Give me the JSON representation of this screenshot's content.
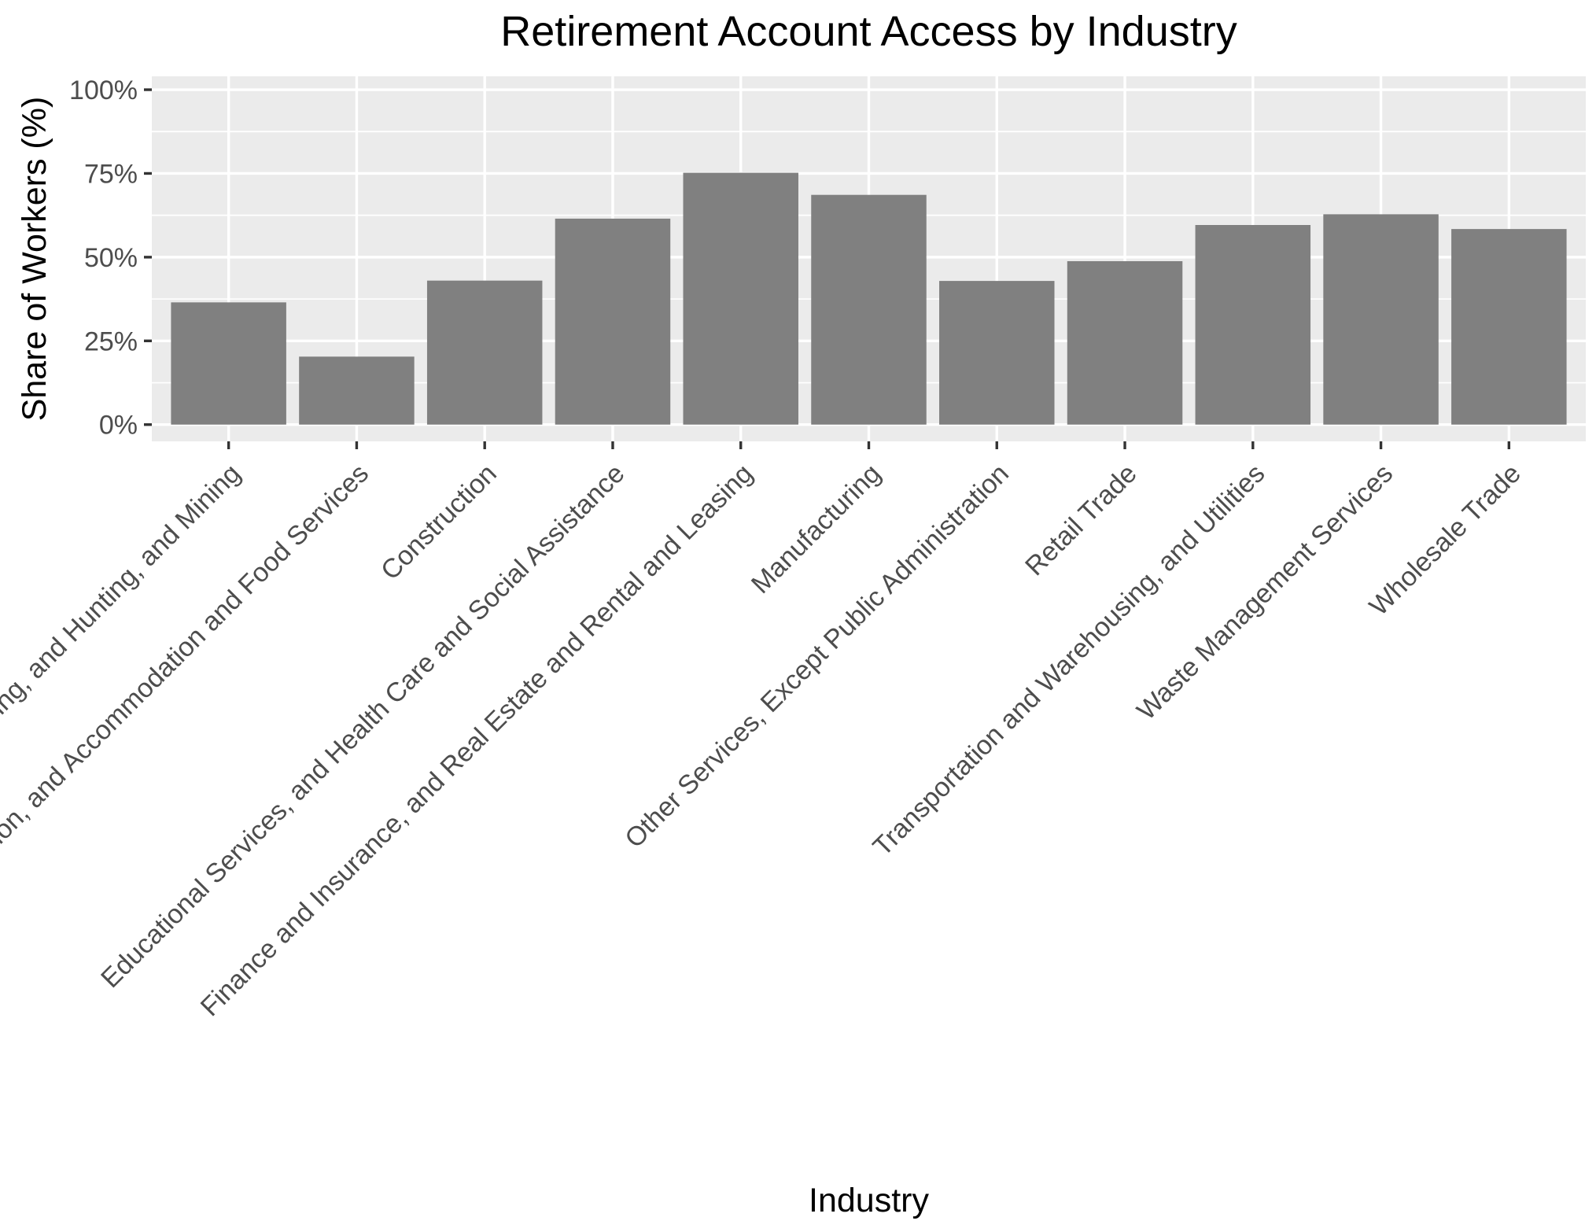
{
  "chart_data": {
    "type": "bar",
    "title": "Retirement Account Access by Industry",
    "xlabel": "Industry",
    "ylabel": "Share of Workers (%)",
    "categories": [
      "Agriculture, Forestry, Fishing, and Hunting, and Mining",
      "Arts, Entertainment, and Recreation, and Accommodation and Food Services",
      "Construction",
      "Educational Services, and Health Care and Social Assistance",
      "Finance and Insurance, and Real Estate and Rental and Leasing",
      "Manufacturing",
      "Other Services, Except Public Administration",
      "Retail Trade",
      "Transportation and Warehousing, and Utilities",
      "Waste Management Services",
      "Wholesale Trade"
    ],
    "values": [
      36.5,
      20.3,
      43.0,
      61.5,
      75.2,
      68.6,
      42.9,
      48.8,
      59.6,
      62.8,
      58.4
    ],
    "ylim": [
      -5,
      104
    ],
    "yticks": [
      0,
      25,
      50,
      75,
      100
    ],
    "ytick_labels": [
      "0%",
      "25%",
      "50%",
      "75%",
      "100%"
    ],
    "grid": true,
    "colors": {
      "bar": "#808080",
      "panel": "#ebebeb",
      "grid": "#ffffff"
    }
  }
}
